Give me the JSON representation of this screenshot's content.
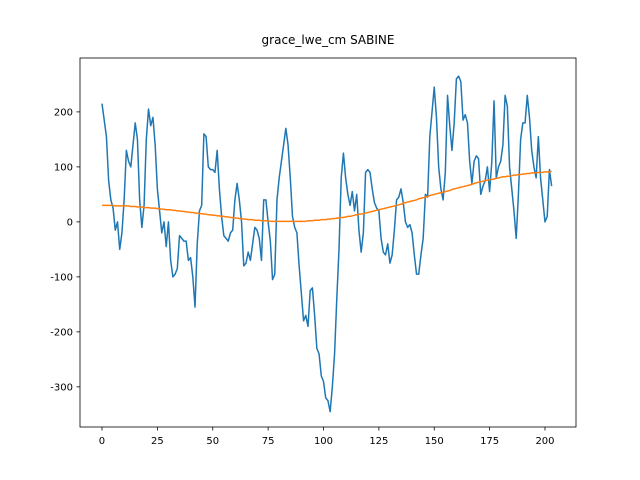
{
  "chart_data": {
    "type": "line",
    "title": "grace_lwe_cm SABINE",
    "x": [
      0,
      1,
      2,
      3,
      4,
      5,
      6,
      7,
      8,
      9,
      10,
      11,
      12,
      13,
      14,
      15,
      16,
      17,
      18,
      19,
      20,
      21,
      22,
      23,
      24,
      25,
      26,
      27,
      28,
      29,
      30,
      31,
      32,
      33,
      34,
      35,
      36,
      37,
      38,
      39,
      40,
      41,
      42,
      43,
      44,
      45,
      46,
      47,
      48,
      49,
      50,
      51,
      52,
      53,
      54,
      55,
      56,
      57,
      58,
      59,
      60,
      61,
      62,
      63,
      64,
      65,
      66,
      67,
      68,
      69,
      70,
      71,
      72,
      73,
      74,
      75,
      76,
      77,
      78,
      79,
      80,
      81,
      82,
      83,
      84,
      85,
      86,
      87,
      88,
      89,
      90,
      91,
      92,
      93,
      94,
      95,
      96,
      97,
      98,
      99,
      100,
      101,
      102,
      103,
      104,
      105,
      106,
      107,
      108,
      109,
      110,
      111,
      112,
      113,
      114,
      115,
      116,
      117,
      118,
      119,
      120,
      121,
      122,
      123,
      124,
      125,
      126,
      127,
      128,
      129,
      130,
      131,
      132,
      133,
      134,
      135,
      136,
      137,
      138,
      139,
      140,
      141,
      142,
      143,
      144,
      145,
      146,
      147,
      148,
      149,
      150,
      151,
      152,
      153,
      154,
      155,
      156,
      157,
      158,
      159,
      160,
      161,
      162,
      163,
      164,
      165,
      166,
      167,
      168,
      169,
      170,
      171,
      172,
      173,
      174,
      175,
      176,
      177,
      178,
      179,
      180,
      181,
      182,
      183,
      184,
      185,
      186,
      187,
      188,
      189,
      190,
      191,
      192,
      193,
      194,
      195,
      196,
      197,
      198,
      199,
      200,
      201,
      202,
      203
    ],
    "series": [
      {
        "color": "#1f77b4",
        "values": [
          215,
          185,
          155,
          75,
          40,
          25,
          -15,
          0,
          -50,
          -20,
          40,
          130,
          110,
          100,
          140,
          180,
          150,
          40,
          -10,
          30,
          150,
          205,
          175,
          190,
          140,
          60,
          20,
          -20,
          0,
          -45,
          0,
          -70,
          -100,
          -95,
          -85,
          -25,
          -30,
          -35,
          -35,
          -70,
          -65,
          -100,
          -155,
          -40,
          20,
          30,
          160,
          155,
          100,
          95,
          95,
          90,
          130,
          60,
          10,
          -25,
          -30,
          -35,
          -20,
          -15,
          40,
          70,
          40,
          0,
          -80,
          -75,
          -55,
          -70,
          -40,
          -10,
          -15,
          -30,
          -70,
          40,
          40,
          0,
          -35,
          -105,
          -95,
          40,
          80,
          110,
          140,
          170,
          140,
          80,
          10,
          -10,
          -20,
          -80,
          -130,
          -180,
          -170,
          -190,
          -125,
          -120,
          -170,
          -230,
          -240,
          -280,
          -290,
          -320,
          -325,
          -345,
          -300,
          -240,
          -140,
          -50,
          80,
          125,
          80,
          50,
          30,
          55,
          20,
          50,
          -15,
          -55,
          -20,
          90,
          95,
          90,
          60,
          35,
          25,
          20,
          -30,
          -55,
          -60,
          -40,
          -75,
          -60,
          -15,
          40,
          45,
          60,
          35,
          0,
          -10,
          -5,
          -20,
          -60,
          -95,
          -95,
          -60,
          -30,
          50,
          45,
          155,
          200,
          245,
          190,
          100,
          60,
          40,
          90,
          230,
          175,
          130,
          180,
          260,
          265,
          255,
          185,
          195,
          180,
          110,
          70,
          110,
          120,
          115,
          50,
          65,
          75,
          100,
          55,
          110,
          220,
          80,
          100,
          110,
          140,
          230,
          210,
          100,
          60,
          20,
          -30,
          50,
          150,
          180,
          180,
          230,
          190,
          130,
          100,
          80,
          155,
          80,
          40,
          0,
          10,
          95,
          65
        ]
      },
      {
        "color": "#ff7f0e",
        "values": [
          30,
          30,
          30,
          30,
          30,
          30,
          29,
          29,
          29,
          29,
          29,
          29,
          29,
          28,
          28,
          28,
          27,
          27,
          27,
          26,
          26,
          26,
          25,
          25,
          25,
          24,
          24,
          23,
          23,
          22,
          22,
          22,
          21,
          21,
          20,
          20,
          19,
          19,
          18,
          18,
          17,
          17,
          16,
          16,
          15,
          15,
          14,
          14,
          13,
          13,
          12,
          12,
          11,
          11,
          10,
          10,
          9,
          9,
          8,
          8,
          7,
          7,
          6,
          6,
          5,
          5,
          4,
          4,
          4,
          3,
          3,
          3,
          2,
          2,
          2,
          2,
          1,
          1,
          1,
          1,
          1,
          1,
          1,
          1,
          1,
          1,
          1,
          1,
          1,
          1,
          1,
          1,
          1,
          2,
          2,
          2,
          3,
          3,
          3,
          4,
          4,
          4,
          5,
          5,
          6,
          6,
          7,
          7,
          8,
          8,
          9,
          10,
          10,
          11,
          12,
          13,
          14,
          14,
          15,
          16,
          17,
          18,
          19,
          20,
          21,
          22,
          23,
          24,
          25,
          26,
          27,
          28,
          29,
          30,
          31,
          32,
          34,
          35,
          36,
          37,
          38,
          39,
          40,
          42,
          43,
          44,
          45,
          46,
          48,
          49,
          50,
          51,
          52,
          53,
          54,
          55,
          56,
          57,
          59,
          60,
          61,
          62,
          63,
          64,
          65,
          66,
          67,
          68,
          70,
          71,
          72,
          73,
          74,
          75,
          76,
          77,
          77,
          78,
          79,
          80,
          81,
          82,
          82,
          83,
          83,
          84,
          85,
          85,
          86,
          86,
          87,
          87,
          88,
          88,
          89,
          89,
          89,
          90,
          90,
          90,
          91,
          91,
          91,
          92
        ]
      }
    ],
    "xlim": [
      -9.93,
      214
    ],
    "xticks": [
      0,
      25,
      50,
      75,
      100,
      125,
      150,
      175,
      200
    ],
    "ylim": [
      -373,
      298
    ],
    "yticks": [
      -300,
      -200,
      -100,
      0,
      100,
      200
    ]
  }
}
